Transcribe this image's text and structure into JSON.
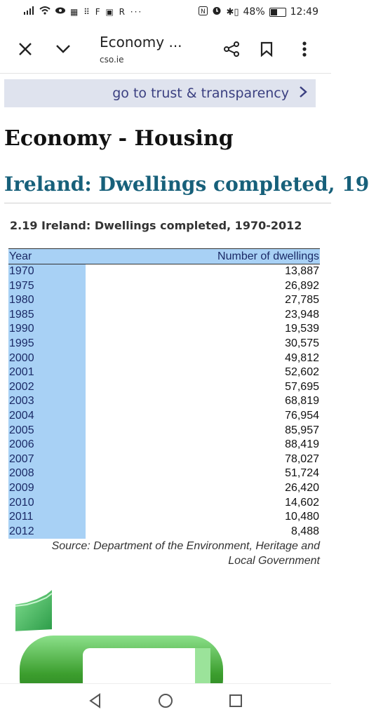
{
  "status": {
    "left_icons": "···ıl ◉ ≡ F ▶ R ···",
    "battery": "48%",
    "time": "12:49"
  },
  "toolbar": {
    "title": "Economy ...",
    "url": "cso.ie"
  },
  "trust_link": "go to trust & transparency",
  "page_title": "Economy - Housing",
  "page_subtitle": "Ireland: Dwellings completed, 19",
  "caption": "2.19  Ireland: Dwellings completed, 1970-2012",
  "table": {
    "headers": [
      "Year",
      "Number of dwellings"
    ],
    "rows": [
      [
        "1970",
        "13,887"
      ],
      [
        "1975",
        "26,892"
      ],
      [
        "1980",
        "27,785"
      ],
      [
        "1985",
        "23,948"
      ],
      [
        "1990",
        "19,539"
      ],
      [
        "1995",
        "30,575"
      ],
      [
        "2000",
        "49,812"
      ],
      [
        "2001",
        "52,602"
      ],
      [
        "2002",
        "57,695"
      ],
      [
        "2003",
        "68,819"
      ],
      [
        "2004",
        "76,954"
      ],
      [
        "2005",
        "85,957"
      ],
      [
        "2006",
        "88,419"
      ],
      [
        "2007",
        "78,027"
      ],
      [
        "2008",
        "51,724"
      ],
      [
        "2009",
        "26,420"
      ],
      [
        "2010",
        "14,602"
      ],
      [
        "2011",
        "10,480"
      ],
      [
        "2012",
        "8,488"
      ]
    ]
  },
  "source_lines": [
    "Source: Department of the Environment, Heritage and",
    "Local Government"
  ]
}
